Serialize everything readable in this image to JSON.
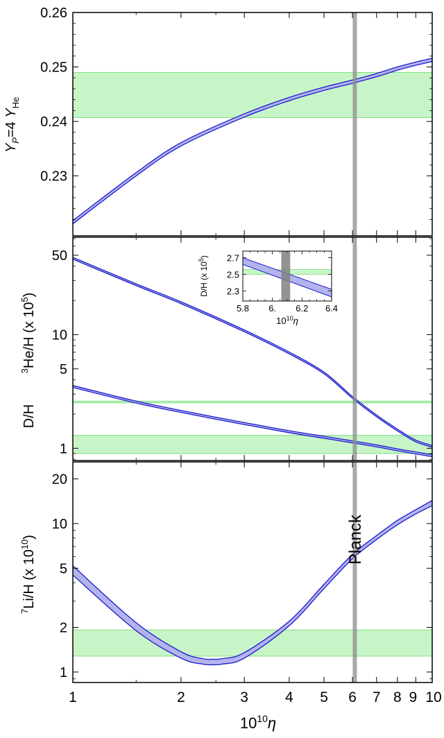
{
  "colors": {
    "curve": "#1a1acc",
    "band_fill": "#b3b3ee",
    "obs_fill": "#c8f5c8",
    "obs_edge": "#7ee07e",
    "planck": "#8c8c8c",
    "inset_obs": "#c8f5c8"
  },
  "chart_data": [
    {
      "type": "line",
      "panel": "helium",
      "ylabel": "Y_P=4 Y_He",
      "xscale": "log",
      "yscale": "linear",
      "xlim": [
        1,
        10
      ],
      "ylim": [
        0.219,
        0.26
      ],
      "yticks": [
        0.23,
        0.24,
        0.25,
        0.26
      ],
      "ytick_labels": [
        "0.23",
        "0.24",
        "0.25",
        "0.26"
      ],
      "observation_band": [
        0.2407,
        0.249
      ],
      "series": [
        {
          "x": [
            1,
            1.5,
            2,
            3,
            4,
            5,
            6,
            7,
            8,
            9,
            10
          ],
          "y": [
            0.2215,
            0.2303,
            0.2358,
            0.2411,
            0.2441,
            0.246,
            0.2473,
            0.2485,
            0.2497,
            0.2506,
            0.2513
          ],
          "width": [
            0.0006,
            0.0006,
            0.0006,
            0.0006,
            0.0006,
            0.0006,
            0.0006,
            0.0006,
            0.0006,
            0.0006,
            0.0006
          ]
        }
      ]
    },
    {
      "type": "line",
      "panel": "deuterium-helium3",
      "ylabel_upper": "³He/H  (x 10⁵)",
      "ylabel_lower": "D/H",
      "xscale": "log",
      "yscale": "log",
      "xlim": [
        1,
        10
      ],
      "ylim": [
        0.78,
        72
      ],
      "yticks": [
        1,
        5,
        10,
        50
      ],
      "ytick_labels": [
        "1",
        "5",
        "10",
        "50"
      ],
      "observation_bands": [
        [
          2.51,
          2.6
        ],
        [
          0.9,
          1.3
        ]
      ],
      "series": [
        {
          "name": "D/H",
          "x": [
            1,
            1.5,
            2,
            3,
            4,
            5,
            6,
            7,
            8,
            9,
            10
          ],
          "y": [
            47,
            27.5,
            19.1,
            10.8,
            6.9,
            4.6,
            2.8,
            1.93,
            1.45,
            1.16,
            1.04
          ],
          "width": [
            0.018,
            0.018,
            0.018,
            0.018,
            0.018,
            0.018,
            0.018,
            0.018,
            0.018,
            0.018,
            0.018
          ]
        },
        {
          "name": "3He/H",
          "x": [
            1,
            1.5,
            2,
            3,
            4,
            5,
            6,
            7,
            8,
            9,
            10
          ],
          "y": [
            3.5,
            2.55,
            2.11,
            1.65,
            1.4,
            1.25,
            1.14,
            1.05,
            0.97,
            0.91,
            0.86
          ],
          "width": [
            0.02,
            0.02,
            0.02,
            0.02,
            0.02,
            0.02,
            0.02,
            0.02,
            0.02,
            0.02,
            0.02
          ]
        }
      ]
    },
    {
      "type": "line",
      "panel": "inset-deuterium",
      "xlabel": "10¹⁰η",
      "ylabel": "D/H (x 10⁵)",
      "xscale": "linear",
      "yscale": "linear",
      "xlim": [
        5.8,
        6.4
      ],
      "ylim": [
        2.18,
        2.78
      ],
      "xticks": [
        5.8,
        6.0,
        6.2,
        6.4
      ],
      "xtick_labels": [
        "5.8",
        "6.",
        "6.2",
        "6.4"
      ],
      "yticks": [
        2.3,
        2.5,
        2.7
      ],
      "ytick_labels": [
        "2.3",
        "2.5",
        "2.7"
      ],
      "observation_band": [
        2.5,
        2.56
      ],
      "planck_band": [
        6.06,
        6.12
      ],
      "series": [
        {
          "name": "D/H",
          "x": [
            5.8,
            6.4
          ],
          "y_upper": [
            2.7,
            2.32
          ],
          "y_lower": [
            2.62,
            2.23
          ]
        }
      ]
    },
    {
      "type": "line",
      "panel": "lithium",
      "ylabel": "⁷Li/H   (x 10¹⁰)",
      "xlabel": "10¹⁰η",
      "xscale": "log",
      "yscale": "log",
      "xlim": [
        1,
        10
      ],
      "ylim": [
        0.85,
        26
      ],
      "yticks": [
        1,
        2,
        5,
        10,
        20
      ],
      "ytick_labels": [
        "1",
        "2",
        "5",
        "10",
        "20"
      ],
      "xticks": [
        1,
        2,
        3,
        4,
        5,
        6,
        7,
        8,
        9,
        10
      ],
      "xtick_labels": [
        "1",
        "2",
        "3",
        "4",
        "5",
        "6",
        "7",
        "8",
        "9",
        "10"
      ],
      "observation_band": [
        1.28,
        1.92
      ],
      "series": [
        {
          "name": "7Li/H",
          "x": [
            1,
            1.5,
            2,
            2.3,
            2.45,
            2.6,
            3,
            4,
            5,
            6,
            7,
            8,
            9,
            10
          ],
          "y_upper": [
            5.2,
            2.15,
            1.37,
            1.23,
            1.22,
            1.23,
            1.35,
            2.2,
            3.9,
            6.2,
            8.3,
            10.5,
            12.4,
            14.3
          ],
          "y_lower": [
            4.5,
            1.9,
            1.24,
            1.13,
            1.12,
            1.13,
            1.24,
            2.05,
            3.65,
            5.8,
            7.8,
            9.8,
            11.6,
            13.2
          ]
        }
      ]
    }
  ],
  "labels": {
    "planck": "Planck",
    "xaxis_label": "10¹⁰η",
    "xaxis_label_base": "10",
    "xaxis_label_exp": "10",
    "xaxis_label_var": "η"
  }
}
